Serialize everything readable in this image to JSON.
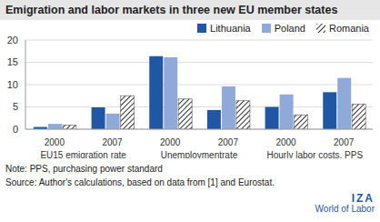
{
  "chart_data": {
    "type": "bar",
    "title": "Emigration and labor markets in three new EU member states",
    "categories": [
      "2000",
      "2007",
      "2000",
      "2007",
      "2000",
      "2007"
    ],
    "groups": [
      "EU15 emigration rate",
      "Unemploymentrate",
      "Hourly labor costs, PPS"
    ],
    "series": [
      {
        "name": "Lithuania",
        "color": "#1f57a4",
        "values": [
          0.5,
          4.9,
          16.4,
          4.3,
          5.0,
          8.3
        ]
      },
      {
        "name": "Poland",
        "color": "#8fa9d8",
        "values": [
          1.2,
          3.5,
          16.1,
          9.6,
          7.8,
          11.5
        ]
      },
      {
        "name": "Romania",
        "color": "#333333",
        "values": [
          0.9,
          7.5,
          6.8,
          6.4,
          3.2,
          5.6
        ]
      }
    ],
    "ylim": [
      0,
      20
    ],
    "yticks": [
      0,
      5,
      10,
      15,
      20
    ],
    "grid": true,
    "legend": "top-right",
    "note": "Note: PPS, purchasing power standard",
    "source": "Source: Author's calculations, based on data from [1] and Eurostat.",
    "logo": [
      "IZA",
      "World of Labor"
    ]
  }
}
